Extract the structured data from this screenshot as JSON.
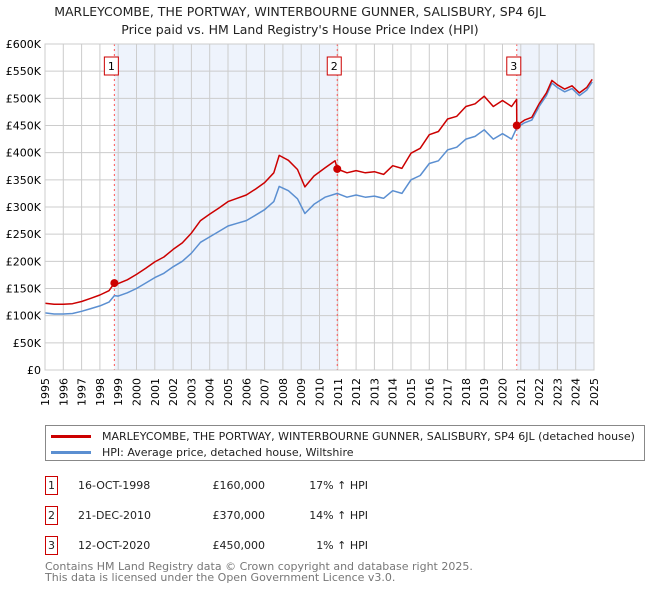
{
  "header": {
    "title": "MARLEYCOMBE, THE PORTWAY, WINTERBOURNE GUNNER, SALISBURY, SP4 6JL",
    "subtitle": "Price paid vs. HM Land Registry's House Price Index (HPI)"
  },
  "colors": {
    "price": "#cc0000",
    "hpi": "#5b8fd1",
    "shade": "#eef3fc",
    "grid": "#cccccc"
  },
  "chart_data": {
    "type": "line",
    "title": "Price paid vs. HM Land Registry's House Price Index (HPI)",
    "xlim": [
      1995,
      2025
    ],
    "ylim": [
      0,
      600000
    ],
    "x_ticks": [
      "1995",
      "1996",
      "1997",
      "1998",
      "1999",
      "2000",
      "2001",
      "2002",
      "2003",
      "2004",
      "2005",
      "2006",
      "2007",
      "2008",
      "2009",
      "2010",
      "2011",
      "2012",
      "2013",
      "2014",
      "2015",
      "2016",
      "2017",
      "2018",
      "2019",
      "2020",
      "2021",
      "2022",
      "2023",
      "2024",
      "2025"
    ],
    "y_ticks": [
      {
        "v": 0,
        "label": "£0"
      },
      {
        "v": 50000,
        "label": "£50K"
      },
      {
        "v": 100000,
        "label": "£100K"
      },
      {
        "v": 150000,
        "label": "£150K"
      },
      {
        "v": 200000,
        "label": "£200K"
      },
      {
        "v": 250000,
        "label": "£250K"
      },
      {
        "v": 300000,
        "label": "£300K"
      },
      {
        "v": 350000,
        "label": "£350K"
      },
      {
        "v": 400000,
        "label": "£400K"
      },
      {
        "v": 450000,
        "label": "£450K"
      },
      {
        "v": 500000,
        "label": "£500K"
      },
      {
        "v": 550000,
        "label": "£550K"
      },
      {
        "v": 600000,
        "label": "£600K"
      }
    ],
    "grid": true,
    "series": [
      {
        "name": "MARLEYCOMBE, THE PORTWAY, WINTERBOURNE GUNNER, SALISBURY, SP4 6JL (detached house)",
        "color": "#cc0000",
        "x": [
          1995,
          1995.5,
          1996,
          1996.5,
          1997,
          1997.5,
          1998,
          1998.5,
          1998.79,
          1999,
          1999.5,
          2000,
          2000.5,
          2001,
          2001.5,
          2002,
          2002.5,
          2003,
          2003.5,
          2004,
          2004.5,
          2005,
          2005.5,
          2006,
          2006.5,
          2007,
          2007.5,
          2007.8,
          2008.3,
          2008.8,
          2009.2,
          2009.7,
          2010.3,
          2010.85,
          2010.97,
          2011.5,
          2012,
          2012.5,
          2013,
          2013.5,
          2014,
          2014.5,
          2015,
          2015.5,
          2016,
          2016.5,
          2017,
          2017.5,
          2018,
          2018.5,
          2019,
          2019.5,
          2020,
          2020.5,
          2020.77,
          2020.78,
          2021.2,
          2021.6,
          2022,
          2022.4,
          2022.7,
          2023,
          2023.4,
          2023.8,
          2024.2,
          2024.6,
          2024.9
        ],
        "values": [
          123000,
          121000,
          121000,
          122000,
          126000,
          132000,
          138000,
          146000,
          160000,
          159000,
          166000,
          176000,
          187000,
          199000,
          208000,
          222000,
          234000,
          252000,
          275000,
          287000,
          298000,
          310000,
          316000,
          322000,
          333000,
          345000,
          363000,
          395000,
          386000,
          369000,
          337000,
          357000,
          372000,
          385000,
          370000,
          363000,
          367000,
          363000,
          365000,
          360000,
          376000,
          371000,
          399000,
          408000,
          433000,
          439000,
          462000,
          467000,
          485000,
          490000,
          504000,
          485000,
          496000,
          485000,
          498000,
          450000,
          460000,
          465000,
          490000,
          510000,
          533000,
          525000,
          517000,
          523000,
          510000,
          520000,
          535000
        ]
      },
      {
        "name": "HPI: Average price, detached house, Wiltshire",
        "color": "#5b8fd1",
        "x": [
          1995,
          1995.5,
          1996,
          1996.5,
          1997,
          1997.5,
          1998,
          1998.5,
          1998.79,
          1999,
          1999.5,
          2000,
          2000.5,
          2001,
          2001.5,
          2002,
          2002.5,
          2003,
          2003.5,
          2004,
          2004.5,
          2005,
          2005.5,
          2006,
          2006.5,
          2007,
          2007.5,
          2007.8,
          2008.3,
          2008.8,
          2009.2,
          2009.7,
          2010.3,
          2010.97,
          2011.5,
          2012,
          2012.5,
          2013,
          2013.5,
          2014,
          2014.5,
          2015,
          2015.5,
          2016,
          2016.5,
          2017,
          2017.5,
          2018,
          2018.5,
          2019,
          2019.5,
          2020,
          2020.5,
          2020.78,
          2021.2,
          2021.6,
          2022,
          2022.4,
          2022.7,
          2023,
          2023.4,
          2023.8,
          2024.2,
          2024.6,
          2024.9
        ],
        "values": [
          105000,
          103000,
          103000,
          104000,
          108000,
          113000,
          118000,
          125000,
          137000,
          136000,
          142000,
          150000,
          160000,
          170000,
          178000,
          190000,
          200000,
          215000,
          235000,
          245000,
          255000,
          265000,
          270000,
          275000,
          285000,
          295000,
          310000,
          338000,
          330000,
          315000,
          288000,
          305000,
          318000,
          325000,
          318000,
          322000,
          318000,
          320000,
          316000,
          330000,
          325000,
          350000,
          358000,
          380000,
          385000,
          405000,
          410000,
          425000,
          430000,
          442000,
          425000,
          435000,
          425000,
          446000,
          455000,
          460000,
          485000,
          505000,
          528000,
          520000,
          512000,
          518000,
          505000,
          515000,
          530000
        ]
      }
    ],
    "sales": [
      {
        "id": "1",
        "x": 1998.79,
        "value": 160000,
        "date": "16-OCT-1998",
        "price": "£160,000",
        "hpi": "17% ↑ HPI"
      },
      {
        "id": "2",
        "x": 2010.97,
        "value": 370000,
        "date": "21-DEC-2010",
        "price": "£370,000",
        "hpi": "14% ↑ HPI"
      },
      {
        "id": "3",
        "x": 2020.78,
        "value": 450000,
        "date": "12-OCT-2020",
        "price": "£450,000",
        "hpi": "1% ↑ HPI"
      }
    ],
    "shaded_ranges": [
      [
        1998.79,
        2010.97
      ],
      [
        2020.78,
        2025
      ]
    ],
    "legend_position": "below"
  },
  "legend": {
    "price_label": "MARLEYCOMBE, THE PORTWAY, WINTERBOURNE GUNNER, SALISBURY, SP4 6JL (detached house)",
    "hpi_label": "HPI: Average price, detached house, Wiltshire"
  },
  "footer": {
    "line1": "Contains HM Land Registry data © Crown copyright and database right 2025.",
    "line2": "This data is licensed under the Open Government Licence v3.0."
  }
}
